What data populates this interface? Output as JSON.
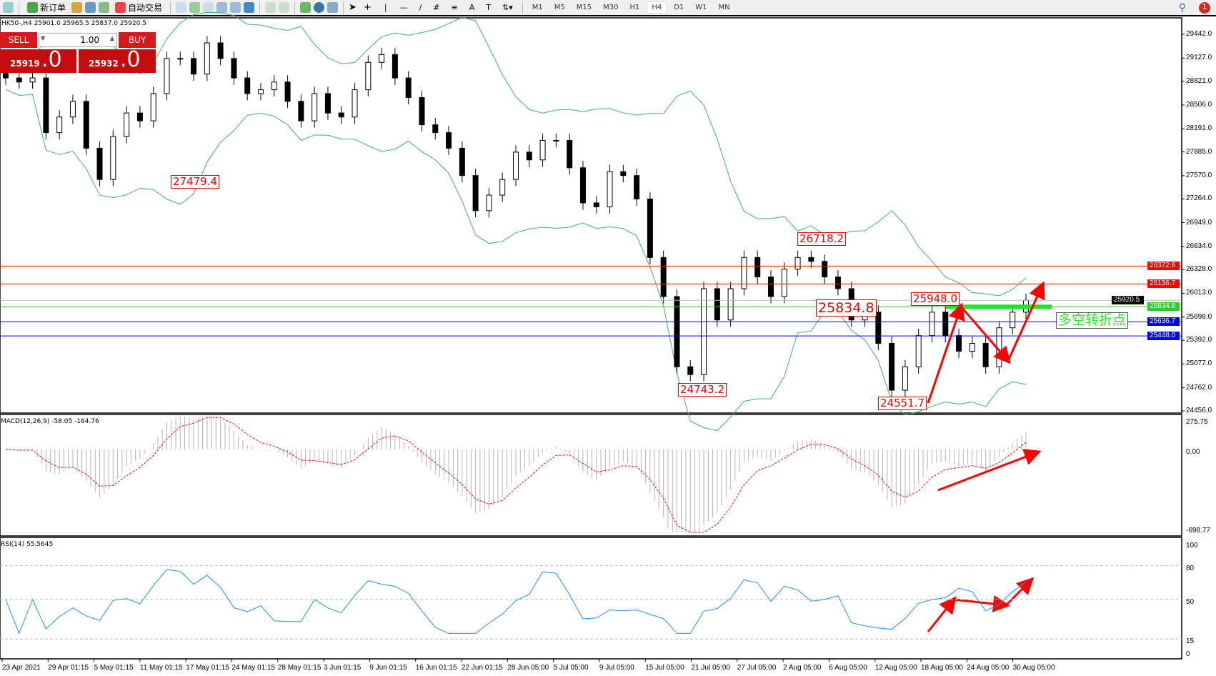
{
  "toolbar": {
    "new_order": "新订单",
    "auto_trading": "自动交易",
    "timeframes": [
      "M1",
      "M5",
      "M15",
      "M30",
      "H1",
      "H4",
      "D1",
      "W1",
      "MN"
    ],
    "active_timeframe": "H4",
    "notification_count": "1"
  },
  "symbol_line": "HK50-,H4  25901.0 25965.5 25837.0 25920.5",
  "trade_panel": {
    "sell_label": "SELL",
    "buy_label": "BUY",
    "lot": "1.00",
    "sell_price": "25919",
    "sell_price_big": ".0",
    "buy_price": "25932",
    "buy_price_big": ".0"
  },
  "chart_data": {
    "type": "candlestick",
    "symbol": "HK50-",
    "timeframe": "H4",
    "ylim": [
      24456.0,
      29442.0
    ],
    "y_ticks": [
      "29442.0",
      "29127.0",
      "28821.0",
      "28506.0",
      "28191.0",
      "27885.0",
      "27570.0",
      "27264.0",
      "26949.0",
      "26634.0",
      "26328.0",
      "26013.0",
      "25698.0",
      "25392.0",
      "25077.0",
      "24762.0",
      "24456.0"
    ],
    "closes": [
      28864,
      28810,
      28864,
      28140,
      28347,
      28554,
      27934,
      27520,
      28088,
      28400,
      28296,
      28657,
      29122,
      29122,
      28915,
      29328,
      29122,
      28864,
      28657,
      28708,
      28810,
      28554,
      28296,
      28657,
      28400,
      28347,
      28708,
      29070,
      29173,
      28864,
      28605,
      28244,
      28140,
      27934,
      27572,
      27107,
      27313,
      27520,
      27882,
      27779,
      28037,
      28037,
      27675,
      27210,
      27158,
      27623,
      27572,
      27262,
      26487,
      25970,
      25040,
      24937,
      26074,
      25660,
      26074,
      26487,
      26229,
      25970,
      26332,
      26487,
      26436,
      26229,
      26074,
      25660,
      25763,
      25350,
      24730,
      25040,
      25453,
      25763,
      25453,
      25246,
      25350,
      25040,
      25556,
      25763,
      25920
    ],
    "annotations": [
      "27479.4",
      "24743.2",
      "26718.2",
      "25834.8",
      "25948.0",
      "24551.7"
    ],
    "horizontal_lines": [
      {
        "price": "26372.6",
        "color": "#ff0000"
      },
      {
        "price": "26136.7",
        "color": "#ff0000"
      },
      {
        "price": "25920.5",
        "color": "#000000"
      },
      {
        "price": "25834.8",
        "color": "#32c832"
      },
      {
        "price": "25636.7",
        "color": "#0000ff"
      },
      {
        "price": "25448.0",
        "color": "#0000ff"
      }
    ],
    "text_label": "多空转折点",
    "macd": {
      "title": "MACD(12,26,9) -58.05 -164.76",
      "ylim": [
        -698.77,
        275.75
      ],
      "ticks": [
        "275.75",
        "0.00",
        "-698.77"
      ]
    },
    "rsi": {
      "title": "RSI(14) 55.5645",
      "ylim": [
        0,
        100
      ],
      "ticks": [
        "100",
        "80",
        "50",
        "15",
        "0"
      ],
      "levels": [
        80,
        50,
        15
      ]
    },
    "x_ticks": [
      "23 Apr 2021",
      "29 Apr 01:15",
      "5 May 01:15",
      "11 May 01:15",
      "17 May 01:15",
      "24 May 01:15",
      "28 May 01:15",
      "3 Jun 01:15",
      "9 Jun 01:15",
      "16 Jun 01:15",
      "22 Jun 01:15",
      "28 Jun 05:00",
      "5 Jul 05:00",
      "9 Jul 05:00",
      "15 Jul 05:00",
      "21 Jul 05:00",
      "27 Jul 05:00",
      "2 Aug 05:00",
      "6 Aug 05:00",
      "12 Aug 05:00",
      "18 Aug 05:00",
      "24 Aug 05:00",
      "30 Aug 05:00"
    ],
    "colors": {
      "bands": "#3cb371",
      "macd_signal": "#ff0000",
      "macd_hist": "#b4b4b4",
      "rsi": "#1e90ff",
      "arrow": "#ff0000"
    }
  }
}
